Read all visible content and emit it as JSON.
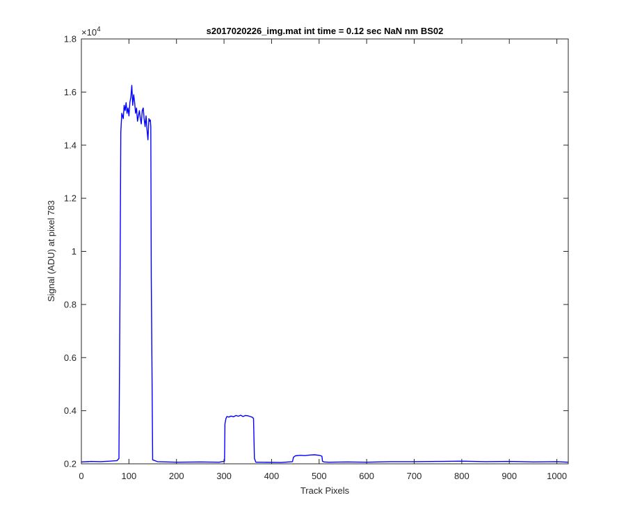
{
  "chart_data": {
    "type": "line",
    "title": "s2017020226_img.mat int time = 0.12 sec  NaN nm BS02",
    "xlabel": "Track Pixels",
    "ylabel": "Signal (ADU) at pixel 783",
    "xlim": [
      0,
      1024
    ],
    "ylim": [
      2000,
      18000
    ],
    "y_exponent_label": "×10",
    "y_exponent_power": "4",
    "x_ticks": [
      0,
      100,
      200,
      300,
      400,
      500,
      600,
      700,
      800,
      900,
      1000
    ],
    "x_tick_labels": [
      "0",
      "100",
      "200",
      "300",
      "400",
      "500",
      "600",
      "700",
      "800",
      "900",
      "1000"
    ],
    "y_ticks": [
      2000,
      4000,
      6000,
      8000,
      10000,
      12000,
      14000,
      16000,
      18000
    ],
    "y_tick_labels": [
      "0.2",
      "0.4",
      "0.6",
      "0.8",
      "1",
      "1.2",
      "1.4",
      "1.6",
      "1.8"
    ],
    "grid": false,
    "box": true,
    "colors": {
      "line": "#0000ff",
      "axes": "#262626",
      "background": "#ffffff"
    },
    "series": [
      {
        "x": [
          0,
          20,
          40,
          60,
          75,
          79,
          81,
          83,
          85,
          88,
          90,
          92,
          94,
          96,
          98,
          100,
          102,
          104,
          106,
          108,
          110,
          112,
          114,
          116,
          118,
          120,
          122,
          124,
          126,
          128,
          130,
          132,
          134,
          136,
          138,
          140,
          142,
          144,
          145,
          146,
          147,
          150,
          160,
          200,
          250,
          290,
          301,
          302,
          304,
          306,
          310,
          315,
          320,
          325,
          330,
          335,
          340,
          345,
          350,
          355,
          360,
          362,
          363,
          364,
          367,
          380,
          420,
          444,
          446,
          450,
          460,
          470,
          480,
          490,
          500,
          504,
          506,
          507,
          510,
          520,
          560,
          600,
          650,
          700,
          750,
          800,
          850,
          900,
          950,
          1000,
          1024
        ],
        "y": [
          2070,
          2090,
          2080,
          2100,
          2120,
          2200,
          8000,
          14500,
          15200,
          15000,
          15500,
          15300,
          15600,
          15200,
          15400,
          15100,
          15600,
          15800,
          16250,
          15500,
          15900,
          15600,
          15200,
          15400,
          14900,
          15100,
          15300,
          15000,
          14800,
          15300,
          15400,
          15000,
          14700,
          15100,
          14600,
          14200,
          15000,
          14900,
          14950,
          14700,
          9000,
          2150,
          2080,
          2060,
          2070,
          2060,
          2100,
          3500,
          3700,
          3780,
          3760,
          3800,
          3770,
          3820,
          3790,
          3830,
          3780,
          3820,
          3810,
          3780,
          3750,
          3700,
          3000,
          2200,
          2060,
          2060,
          2050,
          2080,
          2250,
          2300,
          2320,
          2310,
          2330,
          2340,
          2320,
          2300,
          2280,
          2100,
          2070,
          2060,
          2070,
          2060,
          2080,
          2080,
          2090,
          2100,
          2080,
          2090,
          2070,
          2080,
          2060
        ]
      }
    ]
  }
}
